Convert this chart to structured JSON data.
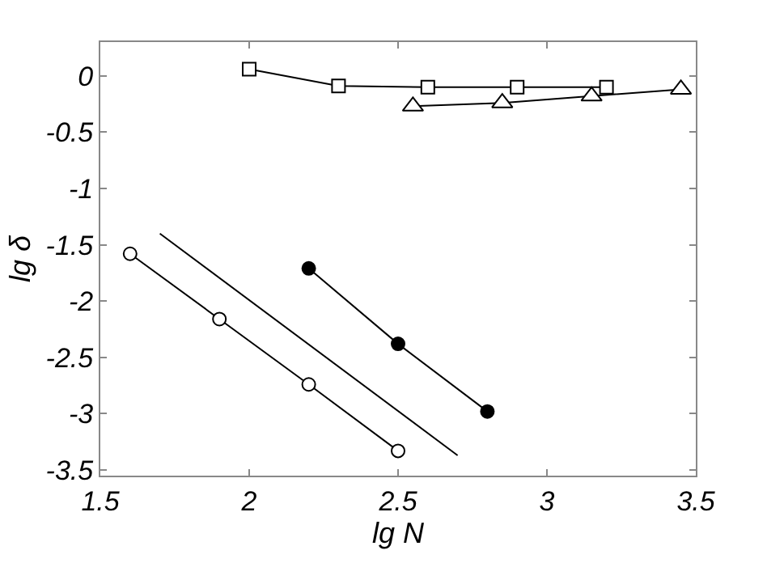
{
  "chart_data": {
    "type": "line",
    "xlabel": "lg N",
    "ylabel": "lg δ",
    "xlim": [
      1.5,
      3.5
    ],
    "ylim": [
      -3.55,
      0.3
    ],
    "xticks": [
      1.5,
      2,
      2.5,
      3,
      3.5
    ],
    "yticks": [
      0,
      -0.5,
      -1,
      -1.5,
      -2,
      -2.5,
      -3,
      -3.5
    ],
    "line_style": "solid",
    "series": [
      {
        "x": [
          2,
          2.3,
          2.6,
          2.9,
          3.2
        ],
        "values": [
          0.06,
          -0.09,
          -0.1,
          -0.1,
          -0.1
        ],
        "marker": "square",
        "color": "#ffffff"
      },
      {
        "x": [
          2.55,
          2.85,
          3.15,
          3.45
        ],
        "values": [
          -0.27,
          -0.24,
          -0.18,
          -0.12
        ],
        "marker": "triangle",
        "color": "#ffffff"
      },
      {
        "x": [
          1.6,
          1.9,
          2.2,
          2.5
        ],
        "values": [
          -1.58,
          -2.16,
          -2.74,
          -3.33
        ],
        "marker": "circle",
        "color": "#ffffff"
      },
      {
        "x": [
          1.7,
          2.7
        ],
        "values": [
          -1.4,
          -3.37
        ],
        "marker": "none",
        "color": "#000000"
      },
      {
        "x": [
          2.2,
          2.5,
          2.8
        ],
        "values": [
          -1.71,
          -2.38,
          -2.98
        ],
        "marker": "circle",
        "color": "#000000"
      }
    ]
  }
}
